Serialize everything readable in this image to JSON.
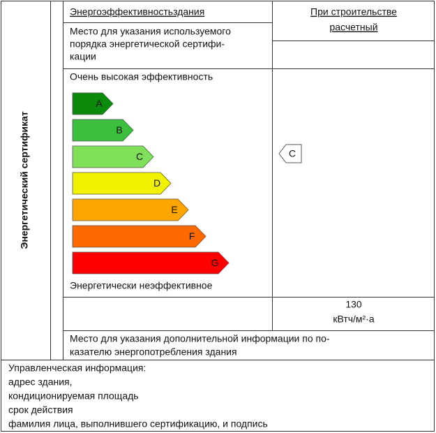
{
  "side_title": "Энергетический сертификат",
  "header": {
    "left": "Энергоэффективностьздания",
    "right": [
      "При строительстве",
      "расчетный"
    ]
  },
  "certification_note": [
    "Место для указания используемого",
    "порядка энергетической сертифи-",
    "кации"
  ],
  "scale": {
    "top_label": "Очень высокая эффективность",
    "bottom_label": "Энергетически неэффективное",
    "classes": [
      {
        "label": "A",
        "color": "#0b8a0b"
      },
      {
        "label": "B",
        "color": "#3cbf3c"
      },
      {
        "label": "C",
        "color": "#80e05a"
      },
      {
        "label": "D",
        "color": "#f2f200"
      },
      {
        "label": "E",
        "color": "#ffa500"
      },
      {
        "label": "F",
        "color": "#ff6a00"
      },
      {
        "label": "G",
        "color": "#ff0000"
      }
    ],
    "current": "C"
  },
  "consumption": [
    "130",
    "кВтч/м²·а"
  ],
  "additional_note": [
    "Место для указания дополнительной информации по по-",
    "казателю энергопотребления здания"
  ],
  "management": [
    "Управленческая  информация:",
    "адрес здания,",
    "кондиционируемая площадь",
    "срок действия",
    "фамилия лица, выполнившего сертификацию, и подпись"
  ]
}
